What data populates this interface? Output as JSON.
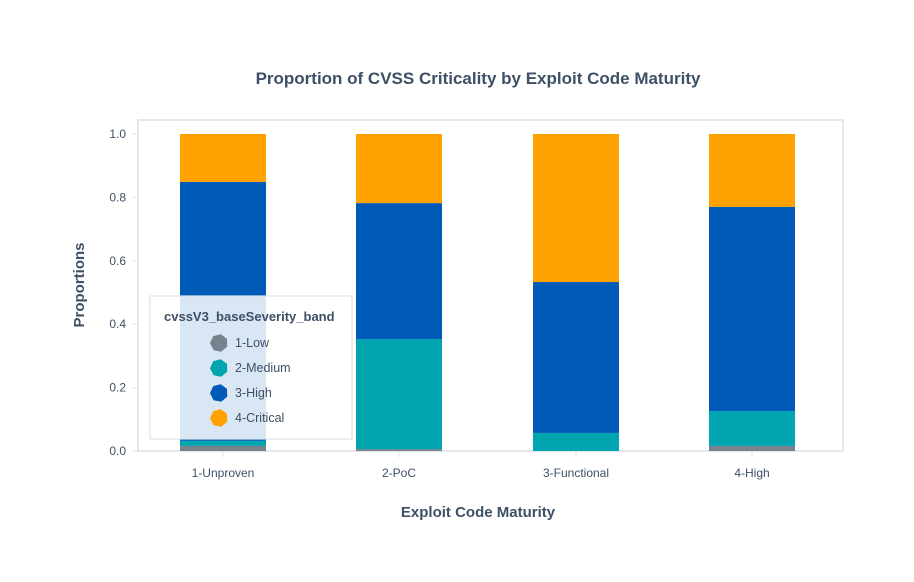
{
  "chart_data": {
    "type": "bar",
    "stacked": true,
    "title": "Proportion of CVSS Criticality by Exploit Code Maturity",
    "xlabel": "Exploit Code Maturity",
    "ylabel": "Proportions",
    "ylim": [
      0,
      1.0
    ],
    "yticks": [
      "0.0",
      "0.2",
      "0.4",
      "0.6",
      "0.8",
      "1.0"
    ],
    "ytick_values": [
      0,
      0.2,
      0.4,
      0.6,
      0.8,
      1.0
    ],
    "categories": [
      "1-Unproven",
      "2-PoC",
      "3-Functional",
      "4-High"
    ],
    "series": [
      {
        "name": "1-Low",
        "color": "#76838f",
        "values": [
          0.016,
          0.006,
          0.0,
          0.016
        ]
      },
      {
        "name": "2-Medium",
        "color": "#00a5b0",
        "values": [
          0.016,
          0.347,
          0.057,
          0.11
        ]
      },
      {
        "name": "3-High",
        "color": "#005ab7",
        "values": [
          0.817,
          0.429,
          0.476,
          0.644
        ]
      },
      {
        "name": "4-Critical",
        "color": "#ffa200",
        "values": [
          0.151,
          0.218,
          0.467,
          0.23
        ]
      }
    ],
    "legend": {
      "title": "cvssV3_baseSeverity_band",
      "position": "bottom-left inside"
    },
    "grid": false
  }
}
